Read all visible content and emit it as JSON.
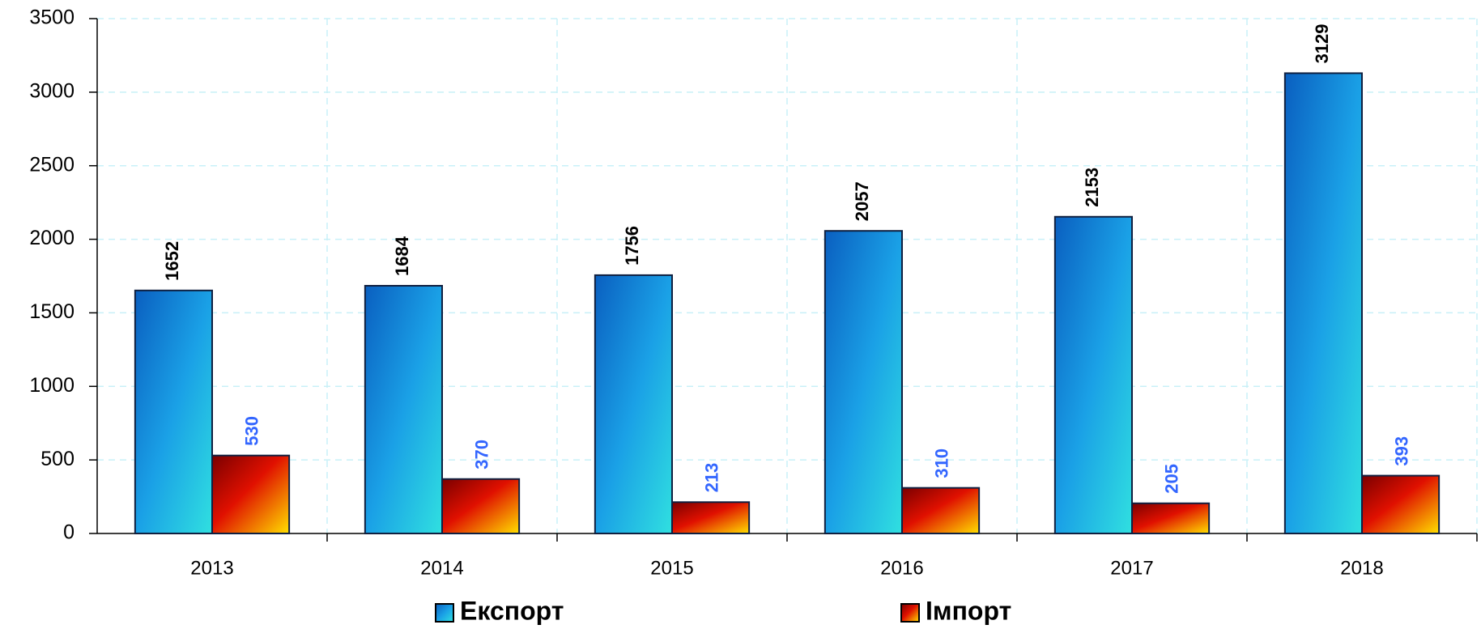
{
  "chart_data": {
    "type": "bar",
    "categories": [
      "2013",
      "2014",
      "2015",
      "2016",
      "2017",
      "2018"
    ],
    "series": [
      {
        "name": "Експорт",
        "color": "#1a9be0",
        "values": [
          1652,
          1684,
          1756,
          2057,
          2153,
          3129
        ]
      },
      {
        "name": "Імпорт",
        "color": "#e8400a",
        "values": [
          530,
          370,
          213,
          310,
          205,
          393
        ]
      }
    ],
    "ylim": [
      0,
      3500
    ],
    "yticks": [
      0,
      500,
      1000,
      1500,
      2000,
      2500,
      3000,
      3500
    ],
    "grid": true
  }
}
